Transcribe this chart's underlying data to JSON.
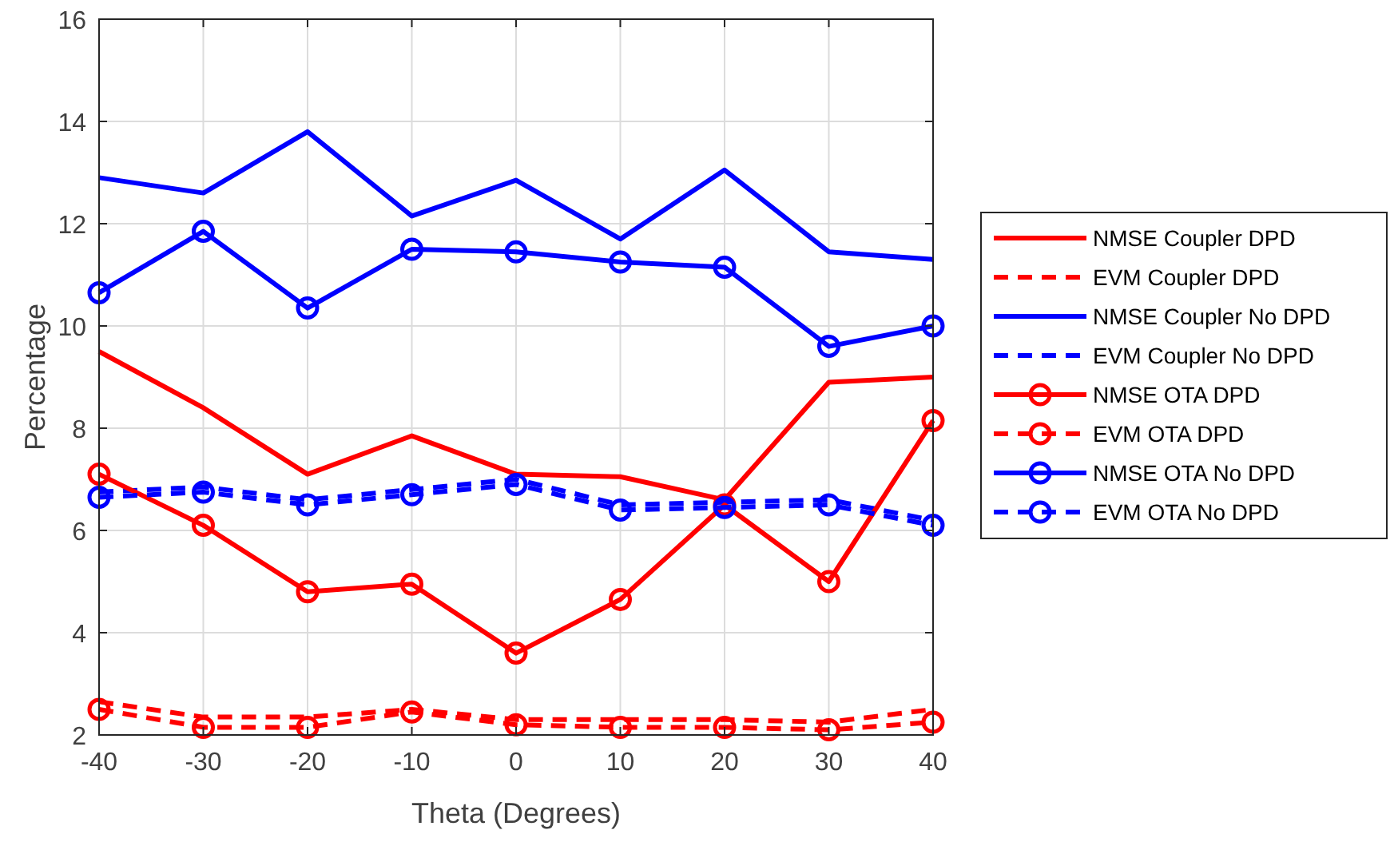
{
  "chart_data": {
    "type": "line",
    "xlabel": "Theta (Degrees)",
    "ylabel": "Percentage",
    "x": [
      -40,
      -30,
      -20,
      -10,
      0,
      10,
      20,
      30,
      40
    ],
    "xlim": [
      -40,
      40
    ],
    "xticks": [
      -40,
      -30,
      -20,
      -10,
      0,
      10,
      20,
      30,
      40
    ],
    "ylim": [
      2,
      16
    ],
    "yticks": [
      2,
      4,
      6,
      8,
      10,
      12,
      14,
      16
    ],
    "grid": true,
    "legend": "right",
    "series": [
      {
        "name": "NMSE Coupler DPD",
        "color": "#ff0000",
        "line_style": "solid",
        "marker": "none",
        "values": [
          9.5,
          8.4,
          7.1,
          7.85,
          7.1,
          7.05,
          6.6,
          8.9,
          9.0
        ]
      },
      {
        "name": "EVM Coupler DPD",
        "color": "#ff0000",
        "line_style": "dashed",
        "marker": "none",
        "values": [
          2.65,
          2.35,
          2.35,
          2.5,
          2.3,
          2.3,
          2.3,
          2.25,
          2.5
        ]
      },
      {
        "name": "NMSE Coupler No DPD",
        "color": "#0000ff",
        "line_style": "solid",
        "marker": "none",
        "values": [
          12.9,
          12.6,
          13.8,
          12.15,
          12.85,
          11.7,
          13.05,
          11.45,
          11.3
        ]
      },
      {
        "name": "EVM Coupler No DPD",
        "color": "#0000ff",
        "line_style": "dashed",
        "marker": "none",
        "values": [
          6.75,
          6.85,
          6.6,
          6.8,
          7.0,
          6.5,
          6.55,
          6.6,
          6.2
        ]
      },
      {
        "name": "NMSE OTA DPD",
        "color": "#ff0000",
        "line_style": "solid",
        "marker": "circle",
        "values": [
          7.1,
          6.1,
          4.8,
          4.95,
          3.6,
          4.65,
          6.5,
          5.0,
          8.15
        ]
      },
      {
        "name": "EVM OTA DPD",
        "color": "#ff0000",
        "line_style": "dashed",
        "marker": "circle",
        "values": [
          2.5,
          2.15,
          2.15,
          2.45,
          2.2,
          2.15,
          2.15,
          2.1,
          2.25
        ]
      },
      {
        "name": "NMSE OTA No DPD",
        "color": "#0000ff",
        "line_style": "solid",
        "marker": "circle",
        "values": [
          10.65,
          11.85,
          10.35,
          11.5,
          11.45,
          11.25,
          11.15,
          9.6,
          10.0
        ]
      },
      {
        "name": "EVM OTA No DPD",
        "color": "#0000ff",
        "line_style": "dashed",
        "marker": "circle",
        "values": [
          6.65,
          6.75,
          6.5,
          6.7,
          6.9,
          6.4,
          6.45,
          6.5,
          6.1
        ]
      }
    ]
  }
}
